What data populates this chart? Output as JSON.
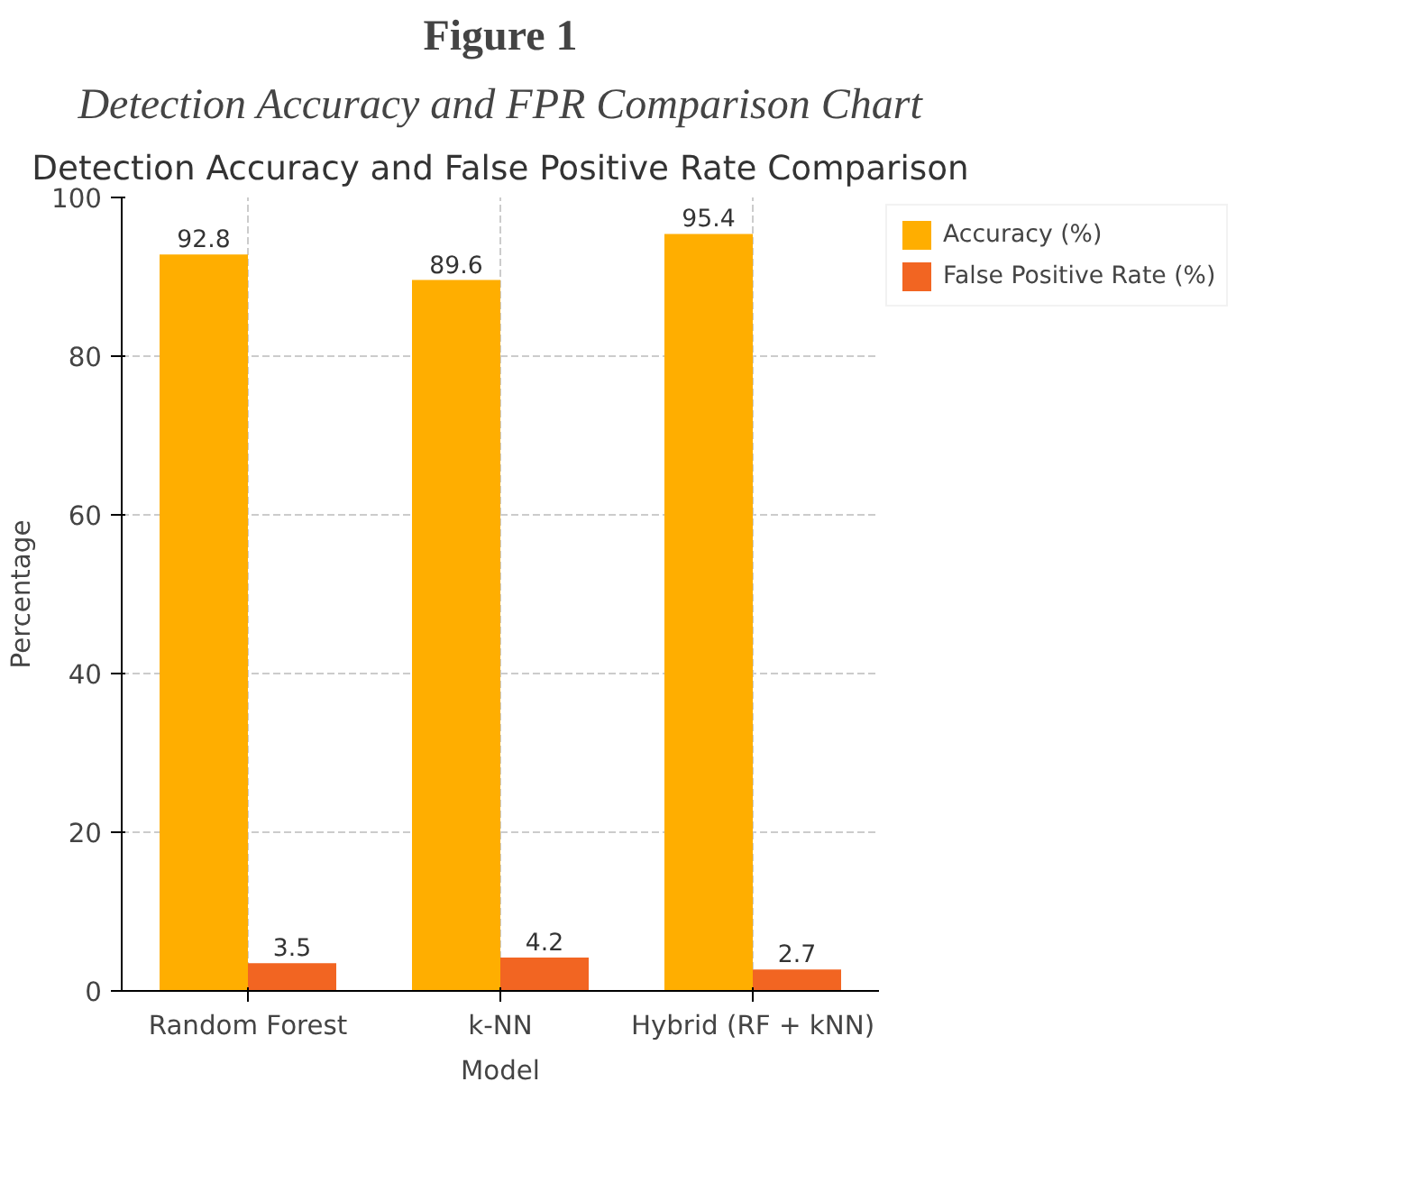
{
  "chart_data": {
    "type": "bar",
    "title": "Detection Accuracy and False Positive Rate Comparison",
    "annotations": [
      "Figure 1",
      "Detection Accuracy and FPR Comparison Chart"
    ],
    "xlabel": "Model",
    "ylabel": "Percentage",
    "categories": [
      "Random Forest",
      "k-NN",
      "Hybrid (RF + kNN)"
    ],
    "series": [
      {
        "name": "Accuracy (%)",
        "color": "#ffae00",
        "values": [
          92.8,
          89.6,
          95.4
        ]
      },
      {
        "name": "False Positive Rate (%)",
        "color": "#f26522",
        "values": [
          3.5,
          4.2,
          2.7
        ]
      }
    ],
    "ylim": [
      0,
      100
    ],
    "yticks": [
      0,
      20,
      40,
      60,
      80,
      100
    ],
    "grid": true,
    "legend": "right",
    "data_labels": true
  }
}
